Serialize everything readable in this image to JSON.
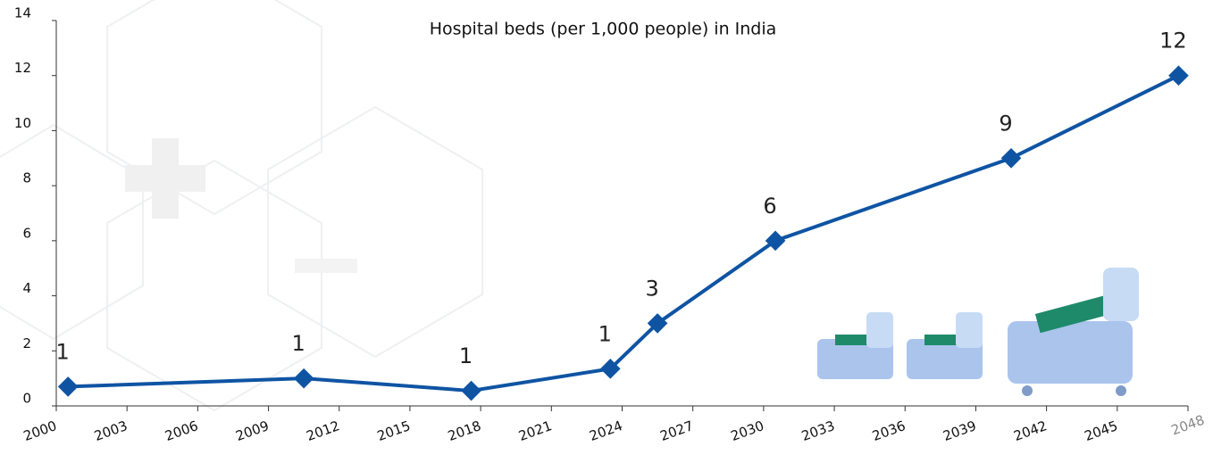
{
  "chart_data": {
    "type": "line",
    "title": "Hospital beds (per 1,000 people) in India",
    "x": [
      2000.5,
      2010.5,
      2017.6,
      2023.5,
      2025.5,
      2030.5,
      2040.5,
      2047.6
    ],
    "series": [
      {
        "color": "#0f54a3",
        "values": [
          0.7,
          1.0,
          0.55,
          1.35,
          3,
          6,
          9,
          12
        ],
        "value_labels": [
          "1",
          "1",
          "1",
          "1",
          "3",
          "6",
          "9",
          "12"
        ]
      }
    ],
    "xlim": [
      2000,
      2048
    ],
    "xticks": [
      2000,
      2003,
      2006,
      2009,
      2012,
      2015,
      2018,
      2021,
      2024,
      2027,
      2030,
      2033,
      2036,
      2039,
      2042,
      2045,
      2048
    ],
    "ylim": [
      0,
      14
    ],
    "yticks": [
      0,
      2,
      4,
      6,
      8,
      10,
      12,
      14
    ]
  }
}
